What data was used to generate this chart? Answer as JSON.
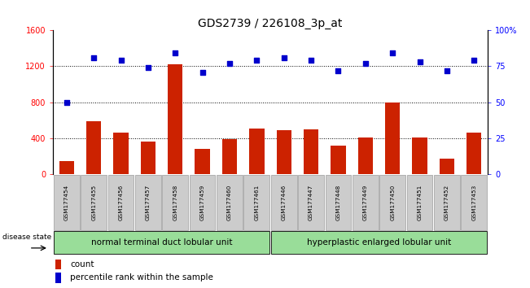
{
  "title": "GDS2739 / 226108_3p_at",
  "categories": [
    "GSM177454",
    "GSM177455",
    "GSM177456",
    "GSM177457",
    "GSM177458",
    "GSM177459",
    "GSM177460",
    "GSM177461",
    "GSM177446",
    "GSM177447",
    "GSM177448",
    "GSM177449",
    "GSM177450",
    "GSM177451",
    "GSM177452",
    "GSM177453"
  ],
  "bar_values": [
    150,
    590,
    460,
    360,
    1220,
    280,
    390,
    510,
    490,
    500,
    320,
    410,
    800,
    410,
    175,
    460
  ],
  "percentile_values": [
    50,
    81,
    79,
    74,
    84,
    71,
    77,
    79,
    81,
    79,
    72,
    77,
    84,
    78,
    72,
    79
  ],
  "bar_color": "#cc2200",
  "dot_color": "#0000cc",
  "left_ylim": [
    0,
    1600
  ],
  "right_ylim": [
    0,
    100
  ],
  "left_yticks": [
    0,
    400,
    800,
    1200,
    1600
  ],
  "right_yticks": [
    0,
    25,
    50,
    75,
    100
  ],
  "right_yticklabels": [
    "0",
    "25",
    "50",
    "75",
    "100%"
  ],
  "group1_label": "normal terminal duct lobular unit",
  "group2_label": "hyperplastic enlarged lobular unit",
  "group1_count": 8,
  "group2_count": 8,
  "disease_state_label": "disease state",
  "legend_bar_label": "count",
  "legend_dot_label": "percentile rank within the sample",
  "bar_color_legend": "#cc2200",
  "dot_color_legend": "#0000cc",
  "group_bg_color": "#99dd99",
  "tick_label_bg": "#cccccc",
  "title_fontsize": 10,
  "axis_fontsize": 7,
  "legend_fontsize": 7.5,
  "cat_fontsize": 5.2
}
